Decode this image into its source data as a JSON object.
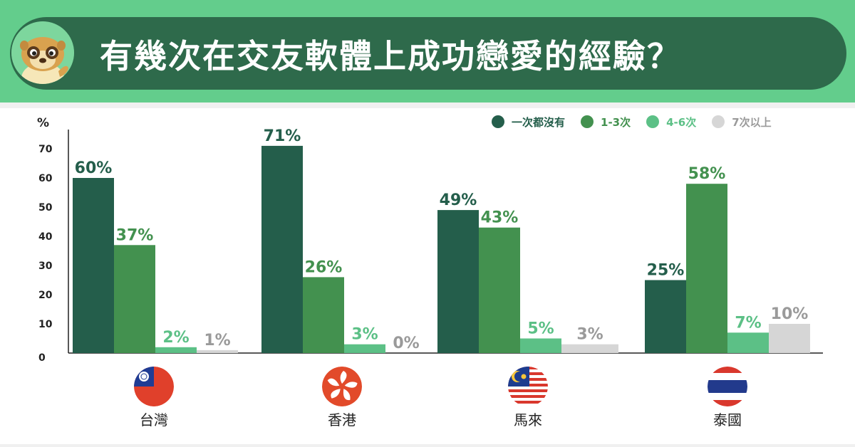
{
  "title": "有幾次在交友軟體上成功戀愛的經驗？",
  "chart_data": {
    "type": "bar",
    "ylabel": "%",
    "ylim": [
      0,
      80
    ],
    "yticks": [
      0,
      10,
      20,
      30,
      40,
      50,
      60,
      70
    ],
    "categories": [
      "台灣",
      "香港",
      "馬來",
      "泰國"
    ],
    "series": [
      {
        "name": "一次都沒有",
        "color": "#245e4b",
        "values": [
          60,
          71,
          49,
          25
        ]
      },
      {
        "name": "1-3次",
        "color": "#43914f",
        "values": [
          37,
          26,
          43,
          58
        ]
      },
      {
        "name": "4-6次",
        "color": "#5cc086",
        "values": [
          2,
          3,
          5,
          7
        ]
      },
      {
        "name": "7次以上",
        "color": "#d6d6d6",
        "values": [
          1,
          0,
          3,
          10
        ]
      }
    ],
    "data_labels": [
      [
        "60%",
        "71%",
        "49%",
        "25%"
      ],
      [
        "37%",
        "26%",
        "43%",
        "58%"
      ],
      [
        "2%",
        "3%",
        "5%",
        "7%"
      ],
      [
        "1%",
        "0%",
        "3%",
        "10%"
      ]
    ],
    "label_colors": [
      "#245e4b",
      "#43914f",
      "#5cc086",
      "#9a9a9a"
    ],
    "legend_position": "top-right",
    "grid": false
  },
  "flags": [
    "taiwan-flag",
    "hong-kong-flag",
    "malaysia-flag",
    "thailand-flag"
  ]
}
